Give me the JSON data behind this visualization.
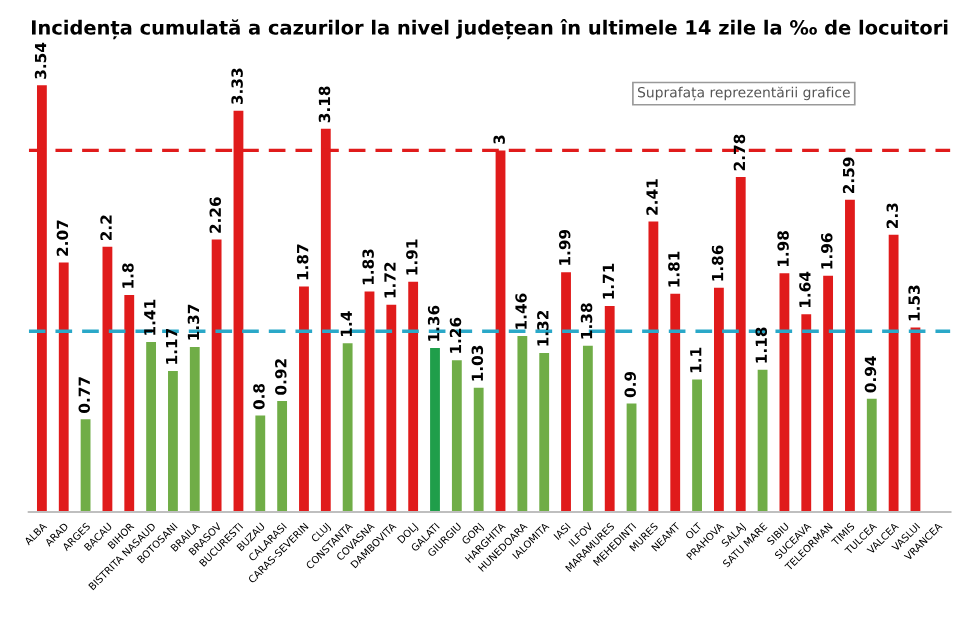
{
  "chart_data": {
    "type": "bar",
    "title": "Incidența cumulată a cazurilor la nivel județean în ultimele 14 zile la ‰ de locuitori",
    "categories": [
      "ALBA",
      "ARAD",
      "ARGES",
      "BACAU",
      "BIHOR",
      "BISTRITA NASAUD",
      "BOTOSANI",
      "BRAILA",
      "BRASOV",
      "BUCURESTI",
      "BUZAU",
      "CALARASI",
      "CARAS-SEVERIN",
      "CLUJ",
      "CONSTANTA",
      "COVASNA",
      "DAMBOVITA",
      "DOLJ",
      "GALATI",
      "GIURGIU",
      "GORJ",
      "HARGHITA",
      "HUNEDOARA",
      "IALOMITA",
      "IASI",
      "ILFOV",
      "MARAMURES",
      "MEHEDINTI",
      "MURES",
      "NEAMT",
      "OLT",
      "PRAHOVA",
      "SALAJ",
      "SATU MARE",
      "SIBIU",
      "SUCEAVA",
      "TELEORMAN",
      "TIMIS",
      "TULCEA",
      "VALCEA",
      "VASLUI",
      "VRANCEA"
    ],
    "values": [
      3.54,
      2.07,
      0.77,
      2.2,
      1.8,
      1.41,
      1.17,
      1.37,
      2.26,
      3.33,
      0.8,
      0.92,
      1.87,
      3.18,
      1.4,
      1.83,
      1.72,
      1.91,
      1.36,
      1.26,
      1.03,
      3,
      1.46,
      1.32,
      1.99,
      1.38,
      1.71,
      0.9,
      2.41,
      1.81,
      1.1,
      1.86,
      2.78,
      1.18,
      1.98,
      1.64,
      1.96,
      2.59,
      0.94,
      2.3,
      1.53,
      null
    ],
    "colors": [
      "#e01b1b",
      "#e01b1b",
      "#70ad47",
      "#e01b1b",
      "#e01b1b",
      "#70ad47",
      "#70ad47",
      "#70ad47",
      "#e01b1b",
      "#e01b1b",
      "#70ad47",
      "#70ad47",
      "#e01b1b",
      "#e01b1b",
      "#70ad47",
      "#e01b1b",
      "#e01b1b",
      "#e01b1b",
      "#1f9e4a",
      "#70ad47",
      "#70ad47",
      "#e01b1b",
      "#70ad47",
      "#70ad47",
      "#e01b1b",
      "#70ad47",
      "#e01b1b",
      "#70ad47",
      "#e01b1b",
      "#e01b1b",
      "#70ad47",
      "#e01b1b",
      "#e01b1b",
      "#70ad47",
      "#e01b1b",
      "#e01b1b",
      "#e01b1b",
      "#e01b1b",
      "#70ad47",
      "#e01b1b",
      "#e01b1b",
      "#e01b1b"
    ],
    "data_labels": true,
    "ref_lines": [
      {
        "axis": "y",
        "value": 3,
        "label": null,
        "color": "#e01b1b",
        "line_style": "dashed"
      },
      {
        "axis": "y",
        "value": 1.5,
        "label": null,
        "color": "#2aa8c8",
        "line_style": "dashed"
      }
    ],
    "annotations": [
      "Suprafața reprezentării grafice"
    ],
    "tick_labels": "x",
    "grid": false,
    "legend": false
  }
}
